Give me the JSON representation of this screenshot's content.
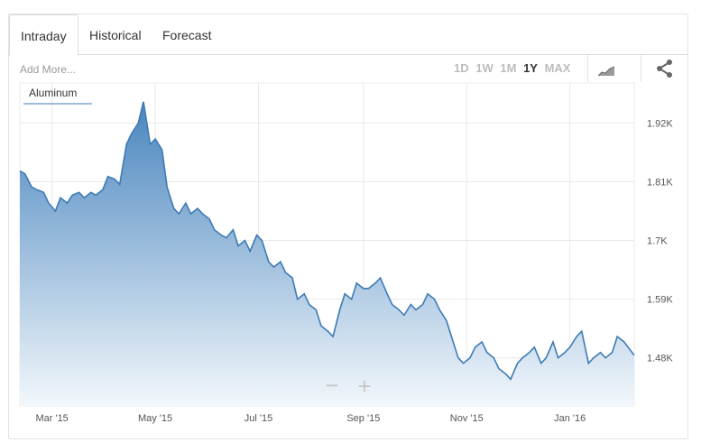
{
  "tabs": [
    {
      "label": "Intraday",
      "active": true
    },
    {
      "label": "Historical",
      "active": false
    },
    {
      "label": "Forecast",
      "active": false
    }
  ],
  "toolbar": {
    "add_more": "Add More...",
    "ranges": [
      {
        "label": "1D",
        "active": false
      },
      {
        "label": "1W",
        "active": false
      },
      {
        "label": "1M",
        "active": false
      },
      {
        "label": "1Y",
        "active": true
      },
      {
        "label": "MAX",
        "active": false
      }
    ],
    "chart_type_icon": "area-chart-icon",
    "share_icon": "share-icon"
  },
  "zoom": {
    "minus": "−",
    "plus": "+"
  },
  "colors": {
    "line": "#3d7ab5",
    "fill_top": "#4a86bf",
    "fill_bottom": "#f2f7fb",
    "grid": "#e8e8e8"
  },
  "chart_data": {
    "type": "area",
    "legend": [
      "Aluminum"
    ],
    "grid": true,
    "x_tick_labels": [
      "Mar '15",
      "May '15",
      "Jul '15",
      "Sep '15",
      "Nov '15",
      "Jan '16"
    ],
    "y_tick_labels": [
      "1.92K",
      "1.81K",
      "1.7K",
      "1.59K",
      "1.48K"
    ],
    "y_ticks": [
      1920,
      1810,
      1700,
      1590,
      1480
    ],
    "ylim": [
      1390,
      1995
    ],
    "xlim": [
      "2015-02-10",
      "2016-02-08"
    ],
    "series": [
      {
        "name": "Aluminum",
        "x": [
          "2015-02-10",
          "2015-02-13",
          "2015-02-17",
          "2015-02-20",
          "2015-02-24",
          "2015-02-27",
          "2015-03-03",
          "2015-03-06",
          "2015-03-10",
          "2015-03-13",
          "2015-03-17",
          "2015-03-20",
          "2015-03-24",
          "2015-03-27",
          "2015-03-31",
          "2015-04-03",
          "2015-04-07",
          "2015-04-10",
          "2015-04-14",
          "2015-04-17",
          "2015-04-21",
          "2015-04-24",
          "2015-04-28",
          "2015-05-01",
          "2015-05-05",
          "2015-05-08",
          "2015-05-12",
          "2015-05-15",
          "2015-05-19",
          "2015-05-22",
          "2015-05-26",
          "2015-05-29",
          "2015-06-02",
          "2015-06-05",
          "2015-06-09",
          "2015-06-12",
          "2015-06-16",
          "2015-06-19",
          "2015-06-23",
          "2015-06-26",
          "2015-06-30",
          "2015-07-03",
          "2015-07-07",
          "2015-07-10",
          "2015-07-14",
          "2015-07-17",
          "2015-07-21",
          "2015-07-24",
          "2015-07-28",
          "2015-07-31",
          "2015-08-04",
          "2015-08-07",
          "2015-08-11",
          "2015-08-14",
          "2015-08-18",
          "2015-08-21",
          "2015-08-25",
          "2015-08-28",
          "2015-09-01",
          "2015-09-04",
          "2015-09-08",
          "2015-09-11",
          "2015-09-15",
          "2015-09-18",
          "2015-09-22",
          "2015-09-25",
          "2015-09-29",
          "2015-10-02",
          "2015-10-06",
          "2015-10-09",
          "2015-10-13",
          "2015-10-16",
          "2015-10-20",
          "2015-10-23",
          "2015-10-27",
          "2015-10-30",
          "2015-11-03",
          "2015-11-06",
          "2015-11-10",
          "2015-11-13",
          "2015-11-17",
          "2015-11-20",
          "2015-11-24",
          "2015-11-27",
          "2015-12-01",
          "2015-12-04",
          "2015-12-08",
          "2015-12-11",
          "2015-12-15",
          "2015-12-18",
          "2015-12-22",
          "2015-12-25",
          "2015-12-29",
          "2016-01-01",
          "2016-01-05",
          "2016-01-08",
          "2016-01-12",
          "2016-01-15",
          "2016-01-19",
          "2016-01-22",
          "2016-01-26",
          "2016-01-29",
          "2016-02-02",
          "2016-02-08"
        ],
        "values": [
          1830,
          1825,
          1800,
          1795,
          1790,
          1770,
          1755,
          1780,
          1770,
          1785,
          1790,
          1780,
          1790,
          1785,
          1795,
          1820,
          1815,
          1805,
          1880,
          1900,
          1920,
          1960,
          1880,
          1890,
          1870,
          1800,
          1760,
          1750,
          1770,
          1750,
          1760,
          1750,
          1740,
          1720,
          1710,
          1705,
          1720,
          1690,
          1700,
          1680,
          1710,
          1700,
          1660,
          1650,
          1660,
          1640,
          1630,
          1590,
          1600,
          1580,
          1570,
          1540,
          1530,
          1520,
          1570,
          1600,
          1590,
          1620,
          1610,
          1610,
          1620,
          1630,
          1600,
          1580,
          1570,
          1560,
          1580,
          1570,
          1580,
          1600,
          1590,
          1570,
          1550,
          1520,
          1480,
          1470,
          1480,
          1500,
          1510,
          1490,
          1480,
          1460,
          1450,
          1440,
          1470,
          1480,
          1490,
          1500,
          1470,
          1480,
          1510,
          1480,
          1490,
          1500,
          1520,
          1530,
          1470,
          1480,
          1490,
          1480,
          1490,
          1520,
          1510,
          1485
        ]
      }
    ]
  }
}
